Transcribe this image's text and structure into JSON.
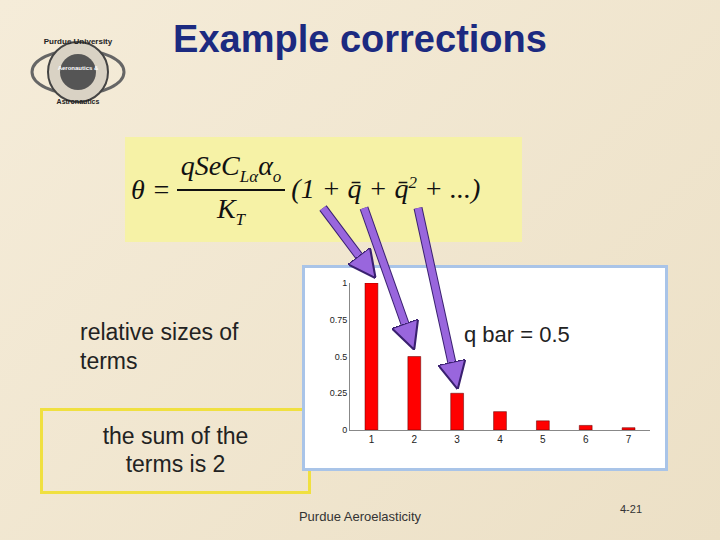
{
  "title": "Example corrections",
  "logo": {
    "top": "Purdue University",
    "middle": "Aeronautics &",
    "bottom": "Astronautics"
  },
  "equation": {
    "lhs": "θ =",
    "numerator": [
      {
        "t": "qSeC"
      },
      {
        "t": "Lα",
        "sub": true
      },
      {
        "t": "α"
      },
      {
        "t": "o",
        "sub": true
      }
    ],
    "denominator": [
      {
        "t": "K"
      },
      {
        "t": "T",
        "sub": true
      }
    ],
    "series": [
      {
        "t": "(1 + "
      },
      {
        "t": "q̄"
      },
      {
        "t": " + "
      },
      {
        "t": "q̄"
      },
      {
        "t": "2",
        "sup": true
      },
      {
        "t": " + ...)"
      }
    ]
  },
  "texts": {
    "relative": "relative sizes of terms",
    "qbar": "q bar = 0.5",
    "sum": "the sum of the terms is 2"
  },
  "footer": "Purdue Aeroelasticity",
  "page": "4-21",
  "chart_data": {
    "type": "bar",
    "categories": [
      "1",
      "2",
      "3",
      "4",
      "5",
      "6",
      "7"
    ],
    "values": [
      1,
      0.5,
      0.25,
      0.125,
      0.0625,
      0.03125,
      0.015625
    ],
    "color": "#ff0000",
    "ylim": [
      0,
      1
    ],
    "yticks": [
      0,
      0.25,
      0.5,
      0.75,
      1
    ],
    "grid": false
  }
}
